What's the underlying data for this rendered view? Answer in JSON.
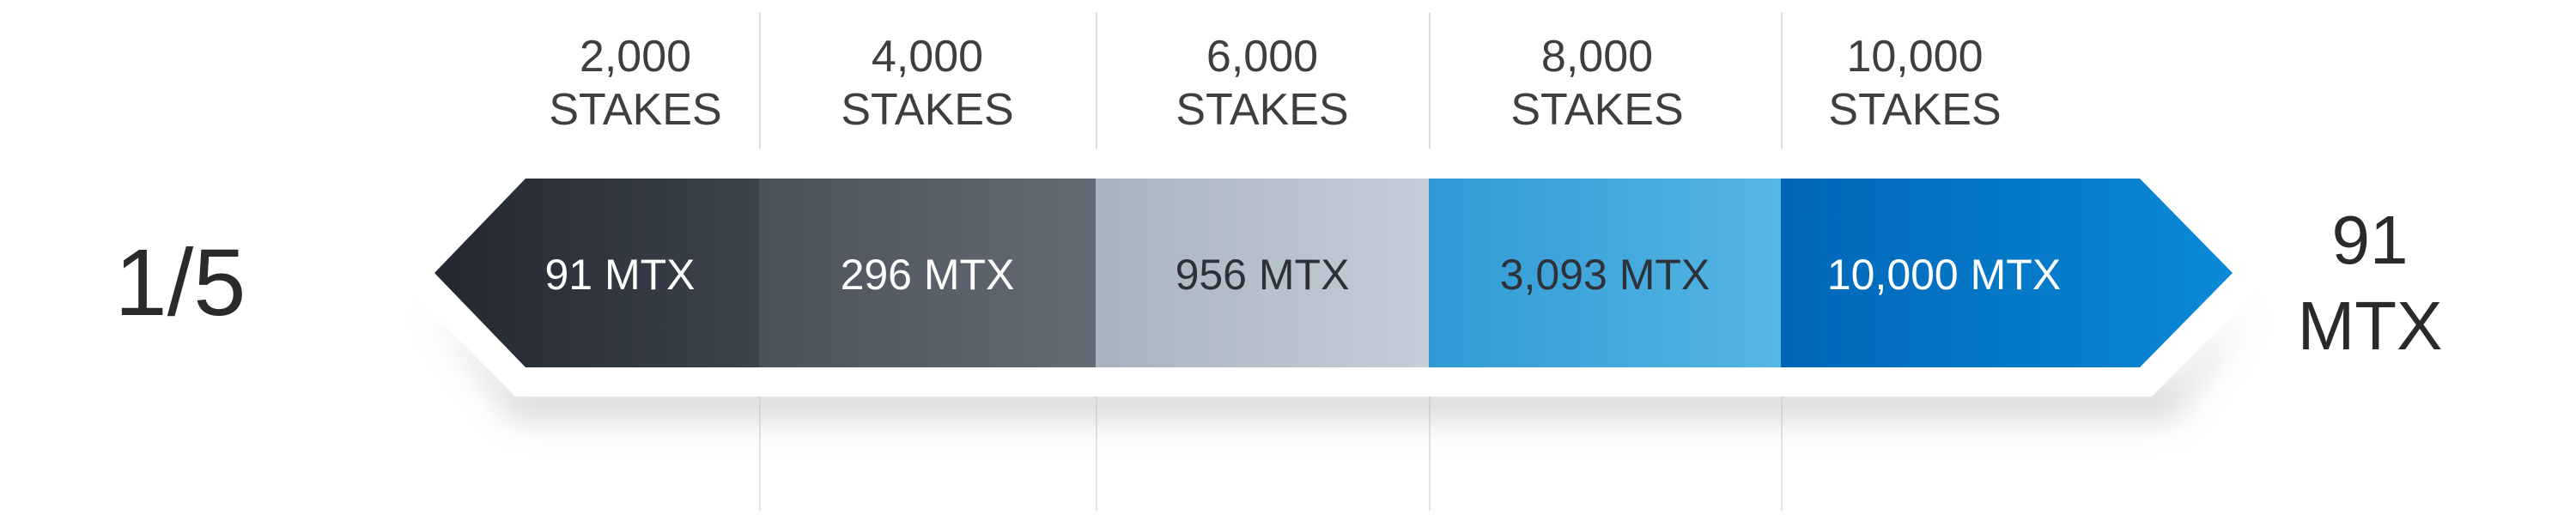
{
  "stakes": [
    {
      "amount": "2,000",
      "unit": "STAKES",
      "reward": "91 MTX",
      "color_start": "#222730",
      "color_end": "#3d434d",
      "text_color": "#ffffff"
    },
    {
      "amount": "4,000",
      "unit": "STAKES",
      "reward": "296 MTX",
      "color_start": "#4c525c",
      "color_end": "#656b75",
      "text_color": "#ffffff"
    },
    {
      "amount": "6,000",
      "unit": "STAKES",
      "reward": "956 MTX",
      "color_start": "#a7b3bf",
      "color_end": "#c4ced8",
      "text_color": "#2e3238"
    },
    {
      "amount": "8,000",
      "unit": "STAKES",
      "reward": "3,093 MTX",
      "color_start": "#2f9ad4",
      "color_end": "#55b6e4",
      "text_color": "#2e3238"
    },
    {
      "amount": "10,000",
      "unit": "STAKES",
      "reward": "10,000 MTX",
      "color_start": "#0066b8",
      "color_end": "#0a8ad8",
      "text_color": "#ffffff"
    }
  ],
  "left_value": "1/5",
  "right_value": {
    "amount": "91",
    "unit": "MTX"
  },
  "colors": {
    "shadow": "#bfbfbf",
    "border": "#ffffff"
  }
}
